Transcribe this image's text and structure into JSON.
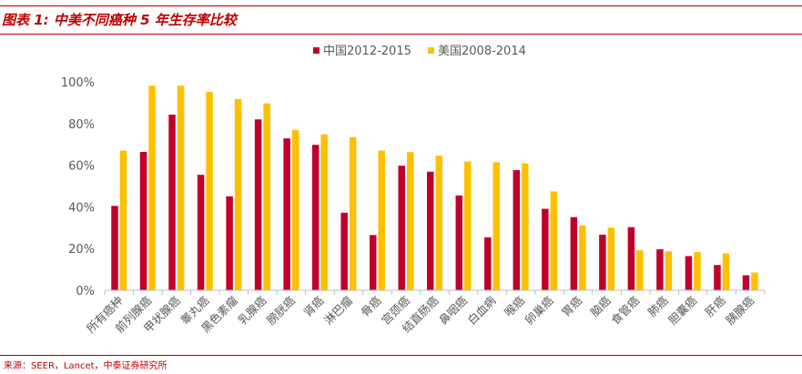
{
  "header": {
    "title": "图表 1:  中美不同癌种 5 年生存率比较"
  },
  "footer": {
    "source": "来源：SEER，Lancet，中泰证券研究所"
  },
  "colors": {
    "accent": "#c00000",
    "series_china": "#c0002a",
    "series_us": "#ffc000",
    "axis_text": "#595959",
    "axis_line": "#bfbfbf"
  },
  "chart_data": {
    "type": "bar",
    "legend_position": "top",
    "grid": false,
    "ylim": [
      0,
      100
    ],
    "yticks": [
      "0%",
      "20%",
      "40%",
      "60%",
      "80%",
      "100%"
    ],
    "categories": [
      "所有癌种",
      "前列腺癌",
      "甲状腺癌",
      "睾丸癌",
      "黑色素瘤",
      "乳腺癌",
      "膀胱癌",
      "肾癌",
      "淋巴瘤",
      "骨癌",
      "宫颈癌",
      "结直肠癌",
      "鼻咽癌",
      "白血病",
      "喉癌",
      "卵巢癌",
      "胃癌",
      "脑癌",
      "食管癌",
      "肺癌",
      "胆囊癌",
      "肝癌",
      "胰腺癌"
    ],
    "series": [
      {
        "name": "中国2012-2015",
        "values": [
          40.5,
          66.4,
          84.3,
          55.4,
          45.1,
          82.0,
          72.9,
          69.8,
          37.2,
          26.5,
          59.8,
          56.9,
          45.5,
          25.4,
          57.7,
          39.1,
          35.1,
          26.7,
          30.3,
          19.7,
          16.4,
          12.1,
          7.2
        ]
      },
      {
        "name": "美国2008-2014",
        "values": [
          67.0,
          98.2,
          98.2,
          95.2,
          91.8,
          89.7,
          76.9,
          74.8,
          73.5,
          67.0,
          66.3,
          64.6,
          61.8,
          61.4,
          60.9,
          47.4,
          31.1,
          30.1,
          19.3,
          18.7,
          18.3,
          17.7,
          8.5
        ]
      }
    ]
  }
}
